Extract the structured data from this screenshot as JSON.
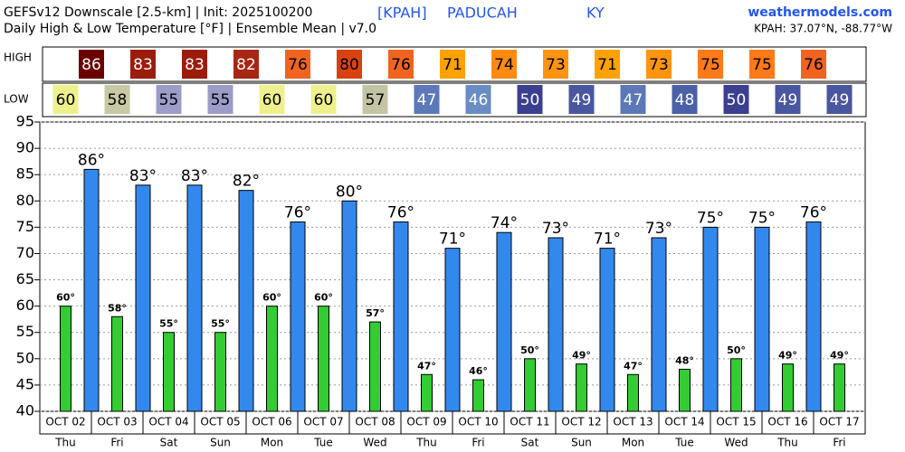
{
  "chart_data": {
    "type": "bar",
    "title": "GEFSv12 Downscale [2.5-km] | Init: 2025100200",
    "subtitle": "Daily High & Low Temperature [°F] | Ensemble Mean | v7.0",
    "station": "[KPAH]",
    "city": "PADUCAH",
    "state": "KY",
    "source": "weathermodels.com",
    "location": "KPAH: 37.07°N, -88.77°W",
    "row_labels": [
      "HIGH",
      "LOW"
    ],
    "categories": [
      "OCT 02",
      "OCT 03",
      "OCT 04",
      "OCT 05",
      "OCT 06",
      "OCT 07",
      "OCT 08",
      "OCT 09",
      "OCT 10",
      "OCT 11",
      "OCT 12",
      "OCT 13",
      "OCT 14",
      "OCT 15",
      "OCT 16",
      "OCT 17"
    ],
    "weekdays": [
      "Thu",
      "Fri",
      "Sat",
      "Sun",
      "Mon",
      "Tue",
      "Wed",
      "Thu",
      "Fri",
      "Sat",
      "Sun",
      "Mon",
      "Tue",
      "Wed",
      "Thu",
      "Fri"
    ],
    "series": [
      {
        "name": "HIGH",
        "color": "#3388ee",
        "offset": "between",
        "values": [
          86,
          83,
          83,
          82,
          76,
          80,
          76,
          71,
          74,
          73,
          71,
          73,
          75,
          75,
          76,
          null
        ],
        "value_labels": [
          "86°",
          "83°",
          "83°",
          "82°",
          "76°",
          "80°",
          "76°",
          "71°",
          "74°",
          "73°",
          "71°",
          "73°",
          "75°",
          "75°",
          "76°",
          null
        ],
        "cell_colors": [
          "#6a0000",
          "#9c1c0c",
          "#9c1c0c",
          "#a82614",
          "#f06420",
          "#d9420e",
          "#f06420",
          "#ffa200",
          "#ff8a10",
          "#ff9410",
          "#ffa200",
          "#ff9410",
          "#ff7a18",
          "#ff7a18",
          "#f06420",
          null
        ],
        "cell_text_colors": [
          "#ffffff",
          "#ffffff",
          "#ffffff",
          "#ffffff",
          "#000000",
          "#000000",
          "#000000",
          "#000000",
          "#000000",
          "#000000",
          "#000000",
          "#000000",
          "#000000",
          "#000000",
          "#000000",
          null
        ]
      },
      {
        "name": "LOW",
        "color": "#33cc33",
        "offset": "center",
        "values": [
          60,
          58,
          55,
          55,
          60,
          60,
          57,
          47,
          46,
          50,
          49,
          47,
          48,
          50,
          49,
          49
        ],
        "value_labels": [
          "60°",
          "58°",
          "55°",
          "55°",
          "60°",
          "60°",
          "57°",
          "47°",
          "46°",
          "50°",
          "49°",
          "47°",
          "48°",
          "50°",
          "49°",
          "49°"
        ],
        "cell_colors": [
          "#eef08c",
          "#c8c8a4",
          "#9c9cc8",
          "#9c9cc8",
          "#eef08c",
          "#eef08c",
          "#c4c4a4",
          "#5c78b8",
          "#6a8cc4",
          "#3c3f90",
          "#4a56a0",
          "#5c78b8",
          "#4a60a8",
          "#3c3f90",
          "#4a56a0",
          "#4a56a0"
        ],
        "cell_text_colors": [
          "#000000",
          "#000000",
          "#000000",
          "#000000",
          "#000000",
          "#000000",
          "#000000",
          "#ffffff",
          "#ffffff",
          "#ffffff",
          "#ffffff",
          "#ffffff",
          "#ffffff",
          "#ffffff",
          "#ffffff",
          "#ffffff"
        ]
      }
    ],
    "ylim": [
      40,
      95
    ],
    "yticks": [
      40,
      45,
      50,
      55,
      60,
      65,
      70,
      75,
      80,
      85,
      90,
      95
    ],
    "grid": true
  }
}
